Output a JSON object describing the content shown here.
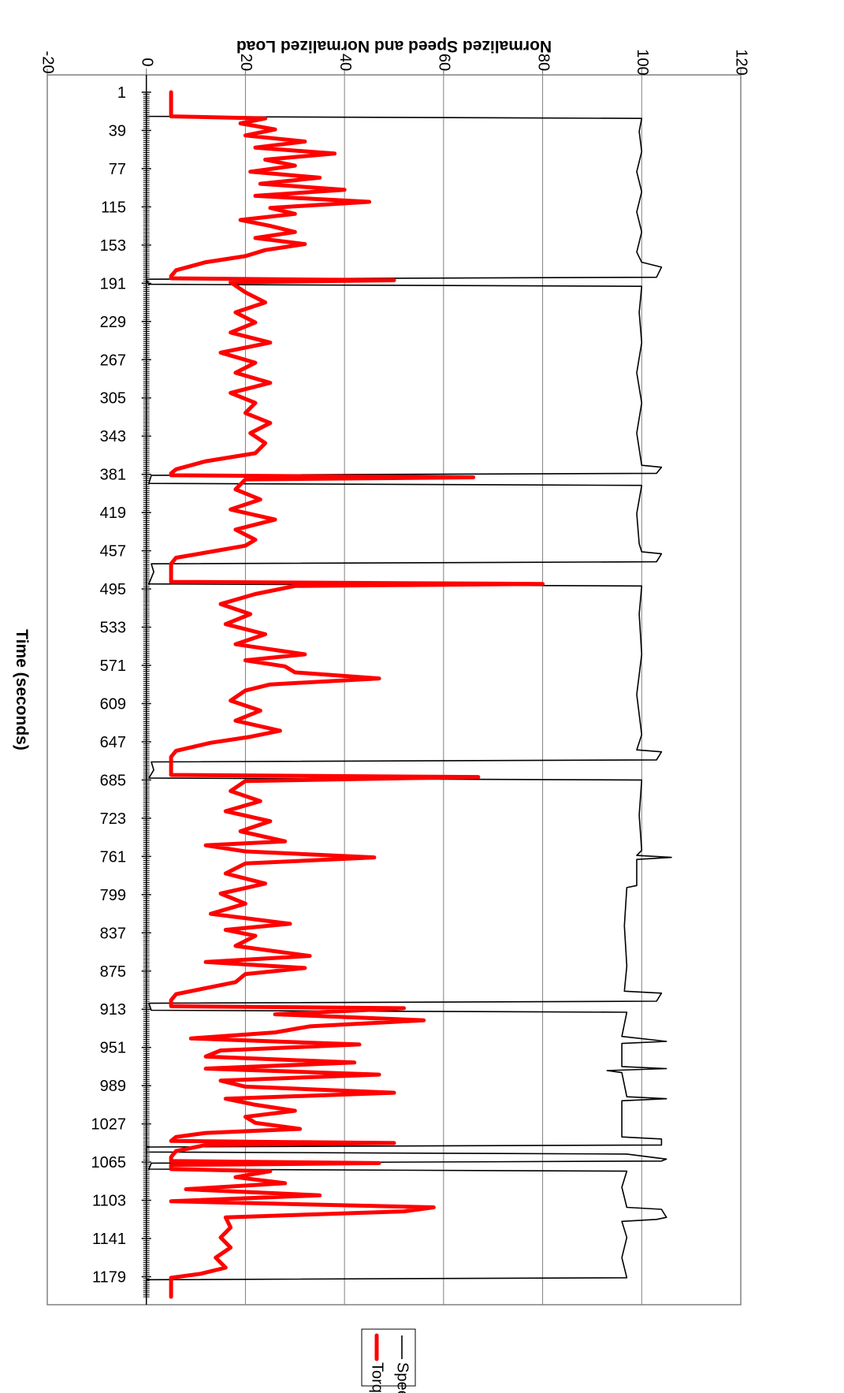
{
  "chart_data": {
    "type": "line",
    "orientation": "rotated-90-clockwise",
    "xlabel": "Time (seconds)",
    "ylabel": "Normalized Speed and Normalized Load",
    "ylim": [
      -20,
      120
    ],
    "yticks": [
      -20,
      0,
      20,
      40,
      60,
      80,
      100,
      120
    ],
    "xlim": [
      1,
      1199
    ],
    "xticks": [
      1,
      39,
      77,
      115,
      153,
      191,
      229,
      267,
      305,
      343,
      381,
      419,
      457,
      495,
      533,
      571,
      609,
      647,
      685,
      723,
      761,
      799,
      837,
      875,
      913,
      951,
      989,
      1027,
      1065,
      1103,
      1141,
      1179
    ],
    "grid": true,
    "legend_position": "bottom",
    "series": [
      {
        "name": "Speed (%)",
        "color": "#000000",
        "width": 1.6,
        "points": [
          [
            1,
            0
          ],
          [
            25,
            0
          ],
          [
            27,
            100
          ],
          [
            40,
            99.5
          ],
          [
            60,
            100
          ],
          [
            80,
            99
          ],
          [
            100,
            100
          ],
          [
            120,
            99
          ],
          [
            140,
            100
          ],
          [
            160,
            99
          ],
          [
            170,
            100
          ],
          [
            175,
            104
          ],
          [
            185,
            103
          ],
          [
            187,
            0
          ],
          [
            192,
            0.5
          ],
          [
            194,
            100
          ],
          [
            220,
            99.5
          ],
          [
            250,
            100
          ],
          [
            280,
            99
          ],
          [
            310,
            100
          ],
          [
            340,
            99
          ],
          [
            372,
            100
          ],
          [
            374,
            104
          ],
          [
            380,
            103
          ],
          [
            382,
            1
          ],
          [
            390,
            0.5
          ],
          [
            392,
            100
          ],
          [
            420,
            99
          ],
          [
            450,
            99.5
          ],
          [
            458,
            100
          ],
          [
            460,
            104
          ],
          [
            468,
            103
          ],
          [
            470,
            1
          ],
          [
            478,
            1.5
          ],
          [
            490,
            0.5
          ],
          [
            492,
            100
          ],
          [
            520,
            99.5
          ],
          [
            560,
            100
          ],
          [
            600,
            99
          ],
          [
            640,
            100
          ],
          [
            655,
            99
          ],
          [
            657,
            104
          ],
          [
            665,
            103
          ],
          [
            667,
            1
          ],
          [
            675,
            1.5
          ],
          [
            683,
            0.5
          ],
          [
            685,
            100
          ],
          [
            720,
            99.5
          ],
          [
            755,
            100
          ],
          [
            760,
            99
          ],
          [
            762,
            106
          ],
          [
            764,
            99
          ],
          [
            790,
            99
          ],
          [
            792,
            97
          ],
          [
            830,
            96.5
          ],
          [
            870,
            97
          ],
          [
            895,
            96.5
          ],
          [
            897,
            104
          ],
          [
            905,
            103
          ],
          [
            907,
            0.5
          ],
          [
            914,
            1
          ],
          [
            916,
            97
          ],
          [
            940,
            96
          ],
          [
            945,
            105
          ],
          [
            947,
            96
          ],
          [
            970,
            96
          ],
          [
            972,
            105
          ],
          [
            974,
            93
          ],
          [
            976,
            96
          ],
          [
            1000,
            97
          ],
          [
            1002,
            105
          ],
          [
            1004,
            96
          ],
          [
            1040,
            96
          ],
          [
            1042,
            104
          ],
          [
            1048,
            104
          ],
          [
            1050,
            0
          ],
          [
            1055,
            0
          ],
          [
            1057,
            97
          ],
          [
            1062,
            105
          ],
          [
            1064,
            104
          ],
          [
            1066,
            1
          ],
          [
            1072,
            0.5
          ],
          [
            1074,
            97
          ],
          [
            1090,
            96
          ],
          [
            1110,
            97
          ],
          [
            1112,
            104
          ],
          [
            1120,
            105
          ],
          [
            1122,
            103
          ],
          [
            1124,
            96
          ],
          [
            1140,
            97
          ],
          [
            1160,
            96
          ],
          [
            1180,
            97
          ],
          [
            1182,
            0
          ],
          [
            1199,
            0
          ]
        ]
      },
      {
        "name": "Torque (%)",
        "color": "#ff0000",
        "width": 5,
        "points": [
          [
            1,
            5
          ],
          [
            25,
            5
          ],
          [
            27,
            24
          ],
          [
            32,
            19
          ],
          [
            38,
            26
          ],
          [
            44,
            20
          ],
          [
            50,
            32
          ],
          [
            56,
            22
          ],
          [
            62,
            38
          ],
          [
            68,
            24
          ],
          [
            74,
            30
          ],
          [
            80,
            21
          ],
          [
            86,
            35
          ],
          [
            92,
            23
          ],
          [
            98,
            40
          ],
          [
            104,
            22
          ],
          [
            110,
            45
          ],
          [
            116,
            25
          ],
          [
            122,
            30
          ],
          [
            128,
            19
          ],
          [
            134,
            25
          ],
          [
            140,
            30
          ],
          [
            146,
            22
          ],
          [
            152,
            32
          ],
          [
            158,
            24
          ],
          [
            164,
            20
          ],
          [
            170,
            12
          ],
          [
            178,
            6
          ],
          [
            184,
            5
          ],
          [
            186,
            5
          ],
          [
            188,
            50
          ],
          [
            190,
            17
          ],
          [
            200,
            20
          ],
          [
            210,
            24
          ],
          [
            220,
            18
          ],
          [
            230,
            22
          ],
          [
            240,
            17
          ],
          [
            250,
            25
          ],
          [
            260,
            15
          ],
          [
            270,
            22
          ],
          [
            280,
            18
          ],
          [
            290,
            25
          ],
          [
            300,
            17
          ],
          [
            310,
            22
          ],
          [
            320,
            20
          ],
          [
            330,
            25
          ],
          [
            340,
            21
          ],
          [
            350,
            24
          ],
          [
            360,
            22
          ],
          [
            368,
            12
          ],
          [
            376,
            6
          ],
          [
            380,
            5
          ],
          [
            382,
            5
          ],
          [
            384,
            66
          ],
          [
            386,
            20
          ],
          [
            396,
            18
          ],
          [
            406,
            23
          ],
          [
            416,
            17
          ],
          [
            426,
            26
          ],
          [
            436,
            18
          ],
          [
            446,
            22
          ],
          [
            452,
            20
          ],
          [
            458,
            13
          ],
          [
            464,
            6
          ],
          [
            470,
            5
          ],
          [
            488,
            5
          ],
          [
            490,
            80
          ],
          [
            492,
            30
          ],
          [
            500,
            22
          ],
          [
            510,
            15
          ],
          [
            520,
            21
          ],
          [
            530,
            16
          ],
          [
            540,
            24
          ],
          [
            550,
            18
          ],
          [
            560,
            32
          ],
          [
            566,
            20
          ],
          [
            572,
            28
          ],
          [
            578,
            30
          ],
          [
            584,
            47
          ],
          [
            590,
            25
          ],
          [
            596,
            20
          ],
          [
            606,
            17
          ],
          [
            616,
            23
          ],
          [
            626,
            18
          ],
          [
            636,
            27
          ],
          [
            642,
            21
          ],
          [
            648,
            13
          ],
          [
            656,
            6
          ],
          [
            662,
            5
          ],
          [
            680,
            5
          ],
          [
            682,
            67
          ],
          [
            686,
            20
          ],
          [
            696,
            17
          ],
          [
            706,
            23
          ],
          [
            716,
            16
          ],
          [
            726,
            25
          ],
          [
            736,
            19
          ],
          [
            746,
            28
          ],
          [
            750,
            12
          ],
          [
            756,
            20
          ],
          [
            762,
            46
          ],
          [
            768,
            20
          ],
          [
            778,
            16
          ],
          [
            788,
            24
          ],
          [
            798,
            15
          ],
          [
            808,
            20
          ],
          [
            818,
            13
          ],
          [
            828,
            29
          ],
          [
            834,
            16
          ],
          [
            840,
            22
          ],
          [
            850,
            18
          ],
          [
            860,
            33
          ],
          [
            866,
            12
          ],
          [
            872,
            32
          ],
          [
            878,
            20
          ],
          [
            886,
            18
          ],
          [
            892,
            12
          ],
          [
            898,
            6
          ],
          [
            904,
            5
          ],
          [
            910,
            5
          ],
          [
            912,
            52
          ],
          [
            918,
            26
          ],
          [
            924,
            56
          ],
          [
            930,
            33
          ],
          [
            936,
            26
          ],
          [
            942,
            9
          ],
          [
            948,
            43
          ],
          [
            954,
            15
          ],
          [
            960,
            12
          ],
          [
            966,
            42
          ],
          [
            972,
            12
          ],
          [
            978,
            47
          ],
          [
            984,
            15
          ],
          [
            990,
            20
          ],
          [
            996,
            50
          ],
          [
            1002,
            16
          ],
          [
            1008,
            22
          ],
          [
            1014,
            30
          ],
          [
            1020,
            20
          ],
          [
            1026,
            22
          ],
          [
            1032,
            31
          ],
          [
            1036,
            12
          ],
          [
            1040,
            6
          ],
          [
            1044,
            5
          ],
          [
            1046,
            50
          ],
          [
            1048,
            12
          ],
          [
            1054,
            6
          ],
          [
            1060,
            5
          ],
          [
            1064,
            5
          ],
          [
            1066,
            47
          ],
          [
            1068,
            5
          ],
          [
            1072,
            5
          ],
          [
            1074,
            25
          ],
          [
            1080,
            18
          ],
          [
            1086,
            28
          ],
          [
            1092,
            8
          ],
          [
            1098,
            35
          ],
          [
            1104,
            5
          ],
          [
            1110,
            58
          ],
          [
            1114,
            52
          ],
          [
            1120,
            16
          ],
          [
            1130,
            17
          ],
          [
            1140,
            15
          ],
          [
            1150,
            17
          ],
          [
            1160,
            14
          ],
          [
            1170,
            16
          ],
          [
            1176,
            11
          ],
          [
            1180,
            5
          ],
          [
            1199,
            5
          ]
        ]
      }
    ]
  }
}
